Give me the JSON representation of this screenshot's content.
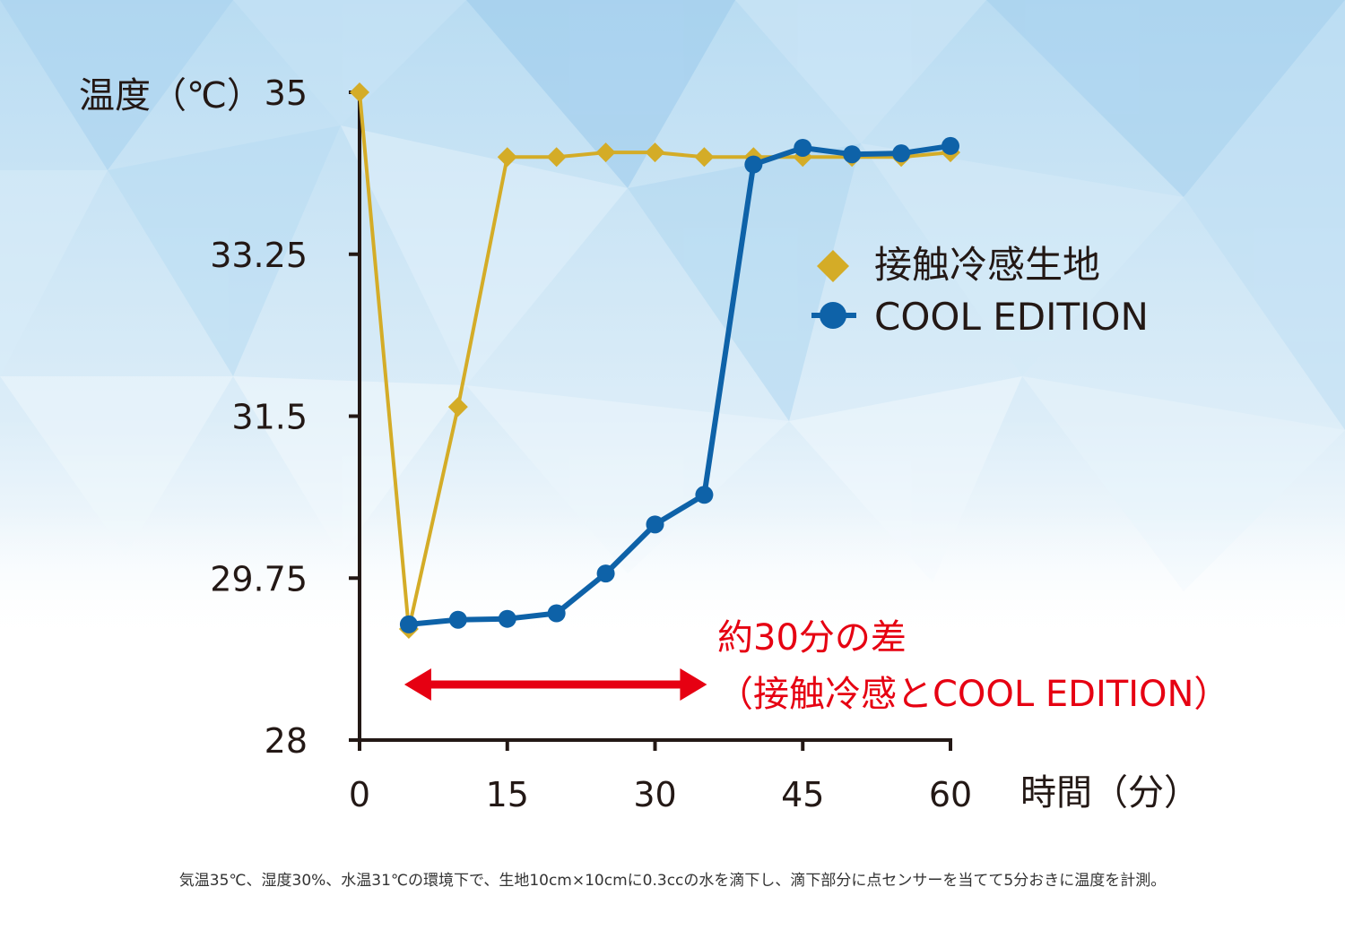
{
  "chart_data": {
    "type": "line",
    "ylabel": "温度（℃）",
    "xlabel": "時間（分）",
    "ylim": [
      28,
      35
    ],
    "xlim": [
      0,
      60
    ],
    "y_ticks": [
      "28",
      "29.75",
      "31.5",
      "33.25",
      "35"
    ],
    "y_tick_values": [
      28,
      29.75,
      31.5,
      33.25,
      35
    ],
    "x_ticks": [
      "0",
      "15",
      "30",
      "45",
      "60"
    ],
    "x_tick_values": [
      0,
      15,
      30,
      45,
      60
    ],
    "grid": false,
    "legend_position": "top-right",
    "x": [
      0,
      5,
      10,
      15,
      20,
      25,
      30,
      35,
      40,
      45,
      50,
      55,
      60
    ],
    "series": [
      {
        "name": "接触冷感生地",
        "marker": "diamond",
        "color": "#d4ac27",
        "x": [
          0,
          5,
          10,
          15,
          20,
          25,
          30,
          35,
          40,
          45,
          50,
          55,
          60
        ],
        "values": [
          35.0,
          29.2,
          31.6,
          34.3,
          34.3,
          34.35,
          34.35,
          34.3,
          34.3,
          34.3,
          34.3,
          34.3,
          34.35
        ]
      },
      {
        "name": "COOL EDITION",
        "marker": "circle",
        "color": "#0e62a8",
        "x": [
          5,
          10,
          15,
          20,
          25,
          30,
          35,
          40,
          45,
          50,
          55,
          60
        ],
        "values": [
          29.25,
          29.3,
          29.31,
          29.37,
          29.8,
          30.33,
          30.65,
          34.22,
          34.4,
          34.33,
          34.34,
          34.42
        ]
      }
    ],
    "annotation": {
      "line1": "約30分の差",
      "line2": "（接触冷感とCOOL EDITION）",
      "color": "#e60012",
      "arrow_from_x": 5,
      "arrow_to_x": 35
    }
  },
  "footnote": "気温35℃、湿度30%、水温31℃の環境下で、生地10cm×10cmに0.3ccの水を滴下し、滴下部分に点センサーを当てて5分おきに温度を計測。"
}
